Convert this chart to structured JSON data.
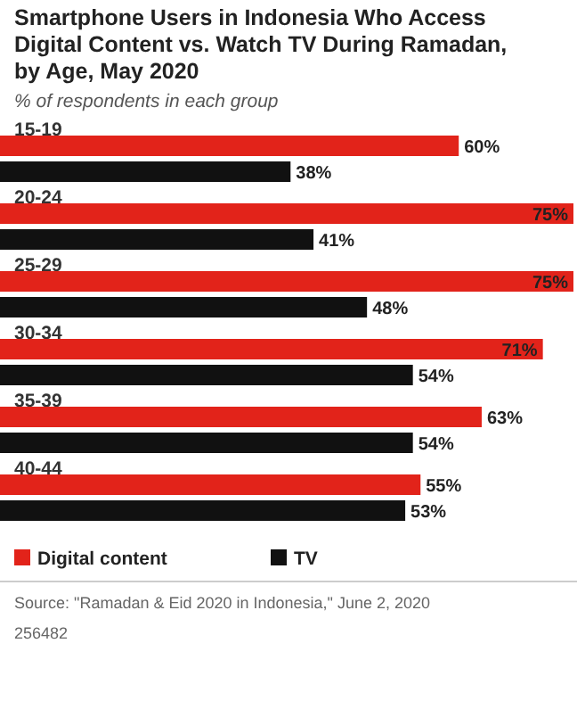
{
  "chart_data": {
    "type": "bar",
    "orientation": "horizontal",
    "title": "Smartphone Users in Indonesia Who Access Digital Content vs. Watch TV During Ramadan, by Age, May 2020",
    "subtitle": "% of respondents in each group",
    "categories": [
      "15-19",
      "20-24",
      "25-29",
      "30-34",
      "35-39",
      "40-44"
    ],
    "series": [
      {
        "name": "Digital content",
        "color": "#e2231a",
        "values": [
          60,
          75,
          75,
          71,
          63,
          55
        ],
        "value_labels": [
          "60%",
          "75%",
          "75%",
          "71%",
          "63%",
          "55%"
        ]
      },
      {
        "name": "TV",
        "color": "#111111",
        "values": [
          38,
          41,
          48,
          54,
          54,
          53
        ],
        "value_labels": [
          "38%",
          "41%",
          "48%",
          "54%",
          "54%",
          "53%"
        ]
      }
    ],
    "legend": "bottom",
    "annotations": [
      "Source: \"Ramadan & Eid 2020 in Indonesia,\" June 2, 2020",
      "256482"
    ]
  }
}
